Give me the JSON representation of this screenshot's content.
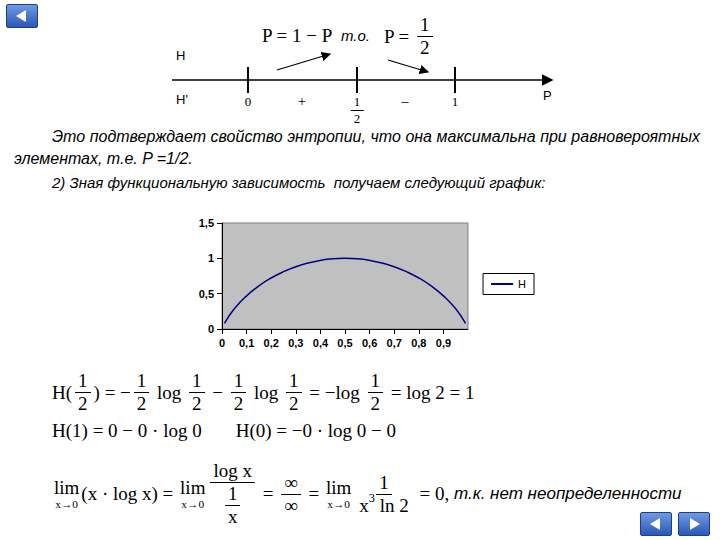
{
  "header": {
    "left": [
      "P = 1 − P"
    ],
    "connector": "т.о.",
    "right": [
      "P = ",
      {
        "frac": {
          "num": [
            "1"
          ],
          "den": [
            "2"
          ]
        }
      }
    ]
  },
  "number_line": {
    "rows": [
      "H",
      "H'"
    ],
    "ticks": [
      [
        "0"
      ],
      [
        {
          "frac": {
            "num": [
              "1"
            ],
            "den": [
              "2"
            ]
          }
        }
      ],
      [
        "1"
      ]
    ],
    "signs": [
      "+",
      "–"
    ],
    "axis": "P"
  },
  "paragraph": "Это подтверждает свойство энтропии, что она максимальна при равновероятных элементах, т.е. P =1/2.",
  "caption": "2) Зная функциональную зависимость  получаем следующий график:",
  "chart_data": {
    "type": "line",
    "x": [
      0.01,
      0.05,
      0.1,
      0.15,
      0.2,
      0.25,
      0.3,
      0.35,
      0.4,
      0.45,
      0.5,
      0.55,
      0.6,
      0.65,
      0.7,
      0.75,
      0.8,
      0.85,
      0.9,
      0.95,
      0.99
    ],
    "series": [
      {
        "name": "H",
        "color": "#000080",
        "marker": "none",
        "line_style": "solid",
        "values": [
          0.081,
          0.286,
          0.469,
          0.61,
          0.722,
          0.811,
          0.881,
          0.934,
          0.971,
          0.993,
          1,
          0.993,
          0.971,
          0.934,
          0.881,
          0.811,
          0.722,
          0.61,
          0.469,
          0.286,
          0.081
        ]
      }
    ],
    "xlim": [
      0,
      1
    ],
    "xticks": [
      0,
      {
        "value": 0.1,
        "label": "0,1"
      },
      {
        "value": 0.2,
        "label": "0,2"
      },
      {
        "value": 0.3,
        "label": "0,3"
      },
      {
        "value": 0.4,
        "label": "0,4"
      },
      {
        "value": 0.5,
        "label": "0,5"
      },
      {
        "value": 0.6,
        "label": "0,6"
      },
      {
        "value": 0.7,
        "label": "0,7"
      },
      {
        "value": 0.8,
        "label": "0,8"
      },
      {
        "value": 0.9,
        "label": "0,9"
      }
    ],
    "ylim": [
      0,
      1.5
    ],
    "yticks": [
      0,
      {
        "value": 0.5,
        "label": "0,5"
      },
      1,
      {
        "value": 1.5,
        "label": "1,5"
      }
    ],
    "grid": false,
    "legend": "right"
  },
  "formulas": [
    [
      [
        "H(",
        {
          "frac": {
            "num": [
              "1"
            ],
            "den": [
              "2"
            ]
          }
        },
        ") = −",
        {
          "frac": {
            "num": [
              "1"
            ],
            "den": [
              "2"
            ]
          }
        },
        " log ",
        {
          "frac": {
            "num": [
              "1"
            ],
            "den": [
              "2"
            ]
          }
        },
        " − ",
        {
          "frac": {
            "num": [
              "1"
            ],
            "den": [
              "2"
            ]
          }
        },
        " log ",
        {
          "frac": {
            "num": [
              "1"
            ],
            "den": [
              "2"
            ]
          }
        },
        " = −log ",
        {
          "frac": {
            "num": [
              "1"
            ],
            "den": [
              "2"
            ]
          }
        },
        " = log 2 = 1"
      ]
    ],
    [
      [
        "H(1) = 0 − 0 · log 0"
      ],
      [
        "H(0) = −0 · log 0 − 0"
      ]
    ],
    [
      [
        {
          "under": {
            "main": "lim",
            "sub": "x→0"
          }
        },
        "(x · log x) = ",
        {
          "under": {
            "main": "lim",
            "sub": "x→0"
          }
        },
        {
          "frac": {
            "num": [
              "log x"
            ],
            "den": [
              {
                "frac": {
                  "num": [
                    "1"
                  ],
                  "den": [
                    "x"
                  ]
                }
              }
            ]
          }
        },
        " = ",
        {
          "frac": {
            "num": [
              "∞"
            ],
            "den": [
              "∞"
            ]
          }
        },
        " = ",
        {
          "under": {
            "main": "lim",
            "sub": "x→0"
          }
        },
        {
          "frac": {
            "num": [
              "1"
            ],
            "den": [
              "x",
              {
                "sup": "3"
              },
              " ln 2"
            ]
          }
        },
        " = 0, ",
        {
          "text": "т.к. нет неопределенности"
        }
      ]
    ]
  ]
}
